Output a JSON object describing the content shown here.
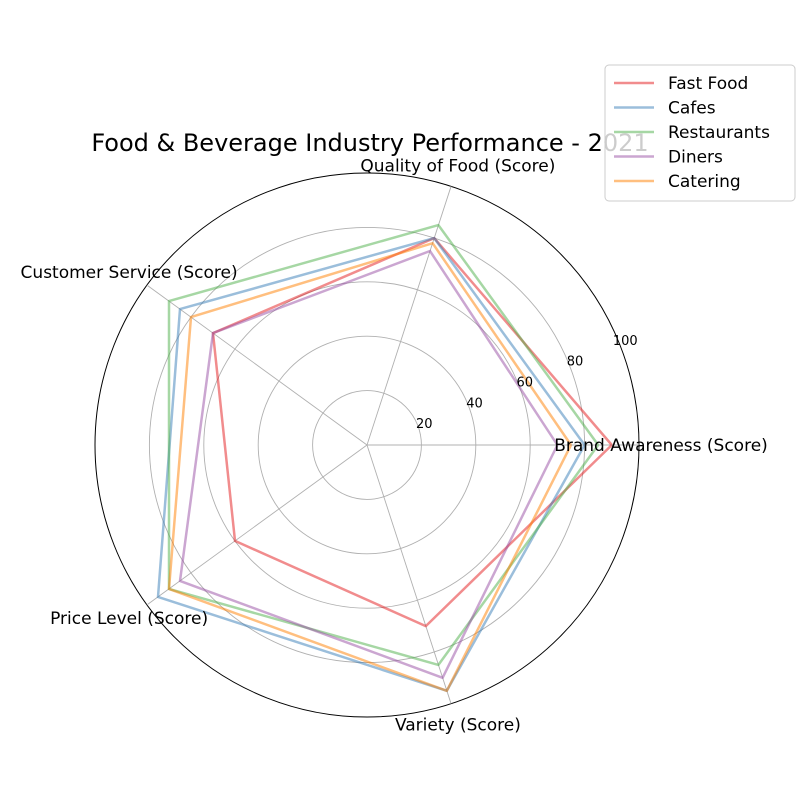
{
  "chart_data": {
    "type": "radar",
    "title": "Food & Beverage Industry Performance - 2021",
    "axes": [
      "Brand Awareness (Score)",
      "Quality of Food (Score)",
      "Customer Service (Score)",
      "Price Level (Score)",
      "Variety (Score)"
    ],
    "rlim": [
      0,
      100
    ],
    "rticks": [
      "20",
      "40",
      "60",
      "80",
      "100"
    ],
    "rtick_values": [
      20,
      40,
      60,
      80,
      100
    ],
    "grid": true,
    "legend_position": "top-right",
    "series": [
      {
        "name": "Fast Food",
        "values": [
          90,
          80,
          70,
          60,
          70
        ],
        "color": "#e41a1c"
      },
      {
        "name": "Cafes",
        "values": [
          80,
          80,
          85,
          95,
          95
        ],
        "color": "#377eb8"
      },
      {
        "name": "Restaurants",
        "values": [
          85,
          85,
          90,
          90,
          85
        ],
        "color": "#4daf4a"
      },
      {
        "name": "Diners",
        "values": [
          70,
          75,
          70,
          85,
          90
        ],
        "color": "#984ea3"
      },
      {
        "name": "Catering",
        "values": [
          75,
          78,
          80,
          90,
          95
        ],
        "color": "#ff7f00"
      }
    ]
  }
}
